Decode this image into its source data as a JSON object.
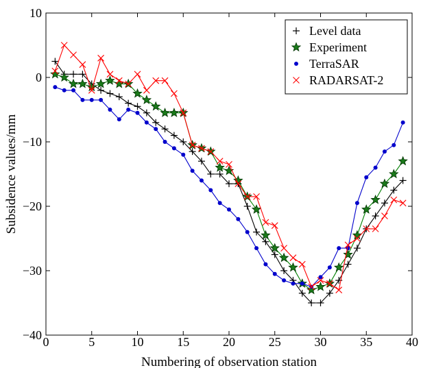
{
  "chart_data": {
    "type": "line",
    "title": "",
    "xlabel": "Numbering of observation station",
    "ylabel": "Subsidence values/mm",
    "xlim": [
      0,
      40
    ],
    "ylim": [
      -40,
      10
    ],
    "xticks": [
      0,
      5,
      10,
      15,
      20,
      25,
      30,
      35,
      40
    ],
    "yticks": [
      10,
      0,
      -10,
      -20,
      -30,
      -40
    ],
    "xtick_labels": [
      "0",
      "5",
      "10",
      "15",
      "20",
      "25",
      "30",
      "35",
      "40"
    ],
    "ytick_labels": [
      "10",
      "0",
      "−10",
      "−20",
      "−30",
      "−40"
    ],
    "grid": false,
    "legend_position": "top-right",
    "x": [
      1,
      2,
      3,
      4,
      5,
      6,
      7,
      8,
      9,
      10,
      11,
      12,
      13,
      14,
      15,
      16,
      17,
      18,
      19,
      20,
      21,
      22,
      23,
      24,
      25,
      26,
      27,
      28,
      29,
      30,
      31,
      32,
      33,
      34,
      35,
      36,
      37,
      38,
      39
    ],
    "series": [
      {
        "name": "Level data",
        "color": "#000000",
        "marker": "plus",
        "values": [
          2.5,
          0.5,
          0.5,
          0.5,
          -1.0,
          -2.0,
          -2.5,
          -3.0,
          -4.0,
          -4.5,
          -5.5,
          -7.0,
          -8.0,
          -9.0,
          -10.0,
          -11.5,
          -13.0,
          -15.0,
          -15.0,
          -16.5,
          -16.5,
          -20.0,
          -24.0,
          -25.5,
          -27.5,
          -30.0,
          -31.5,
          -33.5,
          -35.0,
          -35.0,
          -33.5,
          -31.5,
          -29.0,
          -26.5,
          -23.5,
          -21.5,
          -19.5,
          -17.5,
          -16.0
        ]
      },
      {
        "name": "Experiment",
        "color": "#006400",
        "line_color": "#008000",
        "marker": "star",
        "values": [
          0.5,
          0.0,
          -1.0,
          -1.0,
          -1.5,
          -1.0,
          -0.5,
          -1.0,
          -1.0,
          -2.5,
          -3.5,
          -4.5,
          -5.5,
          -5.5,
          -5.5,
          -10.5,
          -11.0,
          -11.5,
          -14.0,
          -14.5,
          -16.0,
          -18.5,
          -20.5,
          -24.5,
          -26.5,
          -28.0,
          -29.5,
          -32.0,
          -33.0,
          -32.5,
          -32.0,
          -29.5,
          -27.5,
          -24.5,
          -20.5,
          -19.0,
          -16.5,
          -15.0,
          -13.0
        ]
      },
      {
        "name": "TerraSAR",
        "color": "#0000cc",
        "marker": "dot",
        "values": [
          -1.5,
          -2.0,
          -2.0,
          -3.5,
          -3.5,
          -3.5,
          -5.0,
          -6.5,
          -5.0,
          -5.5,
          -7.0,
          -8.0,
          -10.0,
          -11.0,
          -12.0,
          -14.5,
          -16.0,
          -17.5,
          -19.5,
          -20.5,
          -22.0,
          -24.0,
          -26.5,
          -29.0,
          -30.5,
          -31.5,
          -32.0,
          -32.0,
          -32.5,
          -31.0,
          -29.5,
          -26.5,
          -26.5,
          -19.5,
          -15.5,
          -14.0,
          -11.5,
          -10.5,
          -7.0
        ]
      },
      {
        "name": "RADARSAT-2",
        "color": "#ff0000",
        "marker": "x",
        "values": [
          1.0,
          5.0,
          3.5,
          2.0,
          -2.0,
          3.0,
          0.5,
          -0.5,
          -1.0,
          0.5,
          -2.0,
          -0.5,
          -0.5,
          -2.5,
          -5.5,
          -10.5,
          -11.0,
          -11.5,
          -13.0,
          -13.5,
          -16.5,
          -18.5,
          -18.5,
          -22.5,
          -23.0,
          -26.5,
          -28.0,
          -29.0,
          -32.5,
          -31.5,
          -32.0,
          -33.0,
          -26.0,
          -25.0,
          -23.5,
          -23.5,
          -21.5,
          -19.0,
          -19.5
        ]
      }
    ]
  }
}
